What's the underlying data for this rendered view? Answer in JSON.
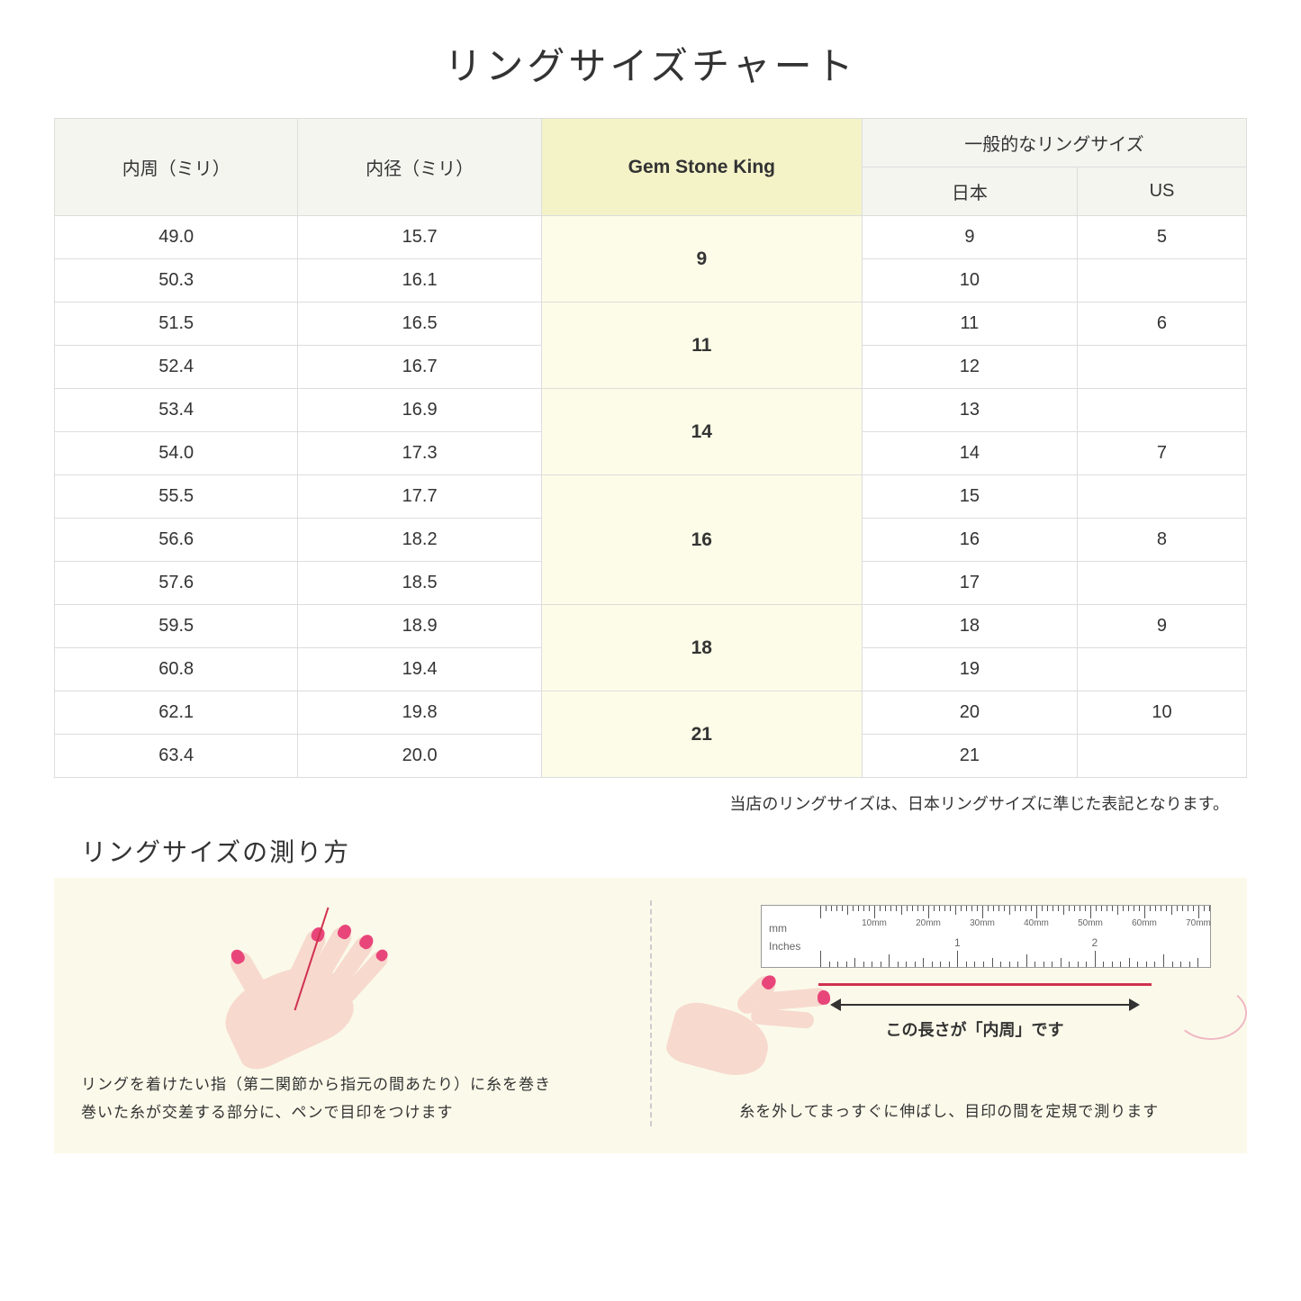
{
  "title": "リングサイズチャート",
  "table": {
    "headers": {
      "circumference": "内周（ミリ）",
      "diameter": "内径（ミリ）",
      "gsk": "Gem Stone King",
      "general": "一般的なリングサイズ",
      "japan": "日本",
      "us": "US"
    },
    "groups": [
      {
        "gsk": "9",
        "rows": [
          {
            "circ": "49.0",
            "dia": "15.7",
            "jp": "9",
            "us": "5"
          },
          {
            "circ": "50.3",
            "dia": "16.1",
            "jp": "10",
            "us": ""
          }
        ]
      },
      {
        "gsk": "11",
        "rows": [
          {
            "circ": "51.5",
            "dia": "16.5",
            "jp": "11",
            "us": "6"
          },
          {
            "circ": "52.4",
            "dia": "16.7",
            "jp": "12",
            "us": ""
          }
        ]
      },
      {
        "gsk": "14",
        "rows": [
          {
            "circ": "53.4",
            "dia": "16.9",
            "jp": "13",
            "us": ""
          },
          {
            "circ": "54.0",
            "dia": "17.3",
            "jp": "14",
            "us": "7"
          }
        ]
      },
      {
        "gsk": "16",
        "rows": [
          {
            "circ": "55.5",
            "dia": "17.7",
            "jp": "15",
            "us": ""
          },
          {
            "circ": "56.6",
            "dia": "18.2",
            "jp": "16",
            "us": "8"
          },
          {
            "circ": "57.6",
            "dia": "18.5",
            "jp": "17",
            "us": ""
          }
        ]
      },
      {
        "gsk": "18",
        "rows": [
          {
            "circ": "59.5",
            "dia": "18.9",
            "jp": "18",
            "us": "9"
          },
          {
            "circ": "60.8",
            "dia": "19.4",
            "jp": "19",
            "us": ""
          }
        ]
      },
      {
        "gsk": "21",
        "rows": [
          {
            "circ": "62.1",
            "dia": "19.8",
            "jp": "20",
            "us": "10"
          },
          {
            "circ": "63.4",
            "dia": "20.0",
            "jp": "21",
            "us": ""
          }
        ]
      }
    ]
  },
  "note": "当店のリングサイズは、日本リングサイズに準じた表記となります。",
  "subtitle": "リングサイズの測り方",
  "instructions": {
    "left": "リングを着けたい指（第二関節から指元の間あたり）に糸を巻き\n巻いた糸が交差する部分に、ペンで目印をつけます",
    "right": "糸を外してまっすぐに伸ばし、目印の間を定規で測ります",
    "length_label": "この長さが「内周」です"
  },
  "ruler": {
    "mm_labels": [
      "10mm",
      "20mm",
      "30mm",
      "40mm",
      "50mm",
      "60mm",
      "70mm"
    ],
    "mm_unit": "mm",
    "in_unit": "Inches",
    "in_labels": [
      "1",
      "2"
    ]
  },
  "colors": {
    "header_bg": "#f5f5f0",
    "gsk_bg": "#f4f3c8",
    "gsk_cell_bg": "#fcfce8",
    "instruction_bg": "#fbfaea",
    "skin": "#f7d9ce",
    "nail": "#e8467a",
    "thread": "#d0314f",
    "border": "#dddddd"
  }
}
